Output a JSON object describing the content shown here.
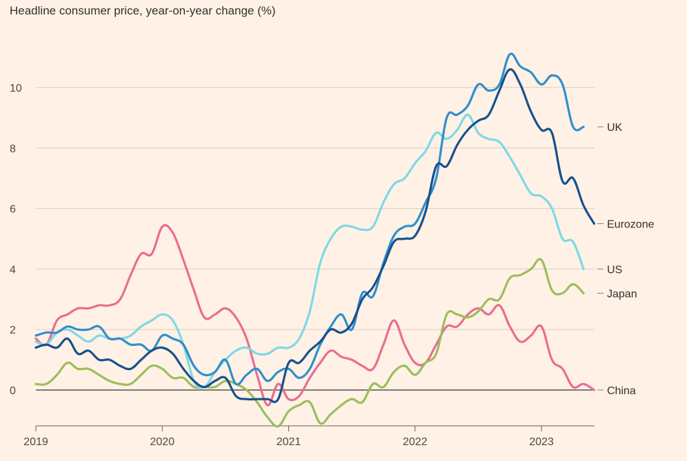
{
  "chart_data": {
    "type": "line",
    "title": "Headline consumer price, year-on-year change (%)",
    "xlabel": "",
    "ylabel": "",
    "x_ticks": [
      "2019",
      "2020",
      "2021",
      "2022",
      "2023"
    ],
    "y_ticks": [
      0,
      2,
      4,
      6,
      8,
      10
    ],
    "xlim": [
      2019.0,
      2023.42
    ],
    "ylim": [
      -1.2,
      11.5
    ],
    "grid": true,
    "legend": "direct labels at right end of lines",
    "series": [
      {
        "name": "China",
        "color": "#E86D91",
        "points": [
          [
            2019.0,
            1.7
          ],
          [
            2019.083,
            1.5
          ],
          [
            2019.167,
            2.3
          ],
          [
            2019.25,
            2.5
          ],
          [
            2019.333,
            2.7
          ],
          [
            2019.417,
            2.7
          ],
          [
            2019.5,
            2.8
          ],
          [
            2019.583,
            2.8
          ],
          [
            2019.667,
            3.0
          ],
          [
            2019.75,
            3.8
          ],
          [
            2019.833,
            4.5
          ],
          [
            2019.917,
            4.5
          ],
          [
            2020.0,
            5.4
          ],
          [
            2020.083,
            5.2
          ],
          [
            2020.167,
            4.3
          ],
          [
            2020.25,
            3.3
          ],
          [
            2020.333,
            2.4
          ],
          [
            2020.417,
            2.5
          ],
          [
            2020.5,
            2.7
          ],
          [
            2020.583,
            2.4
          ],
          [
            2020.667,
            1.7
          ],
          [
            2020.75,
            0.5
          ],
          [
            2020.833,
            -0.5
          ],
          [
            2020.917,
            0.2
          ],
          [
            2021.0,
            -0.3
          ],
          [
            2021.083,
            -0.2
          ],
          [
            2021.167,
            0.4
          ],
          [
            2021.25,
            0.9
          ],
          [
            2021.333,
            1.3
          ],
          [
            2021.417,
            1.1
          ],
          [
            2021.5,
            1.0
          ],
          [
            2021.583,
            0.8
          ],
          [
            2021.667,
            0.7
          ],
          [
            2021.75,
            1.5
          ],
          [
            2021.833,
            2.3
          ],
          [
            2021.917,
            1.5
          ],
          [
            2022.0,
            0.9
          ],
          [
            2022.083,
            0.9
          ],
          [
            2022.167,
            1.5
          ],
          [
            2022.25,
            2.1
          ],
          [
            2022.333,
            2.1
          ],
          [
            2022.417,
            2.5
          ],
          [
            2022.5,
            2.7
          ],
          [
            2022.583,
            2.5
          ],
          [
            2022.667,
            2.8
          ],
          [
            2022.75,
            2.1
          ],
          [
            2022.833,
            1.6
          ],
          [
            2022.917,
            1.8
          ],
          [
            2023.0,
            2.1
          ],
          [
            2023.083,
            1.0
          ],
          [
            2023.167,
            0.7
          ],
          [
            2023.25,
            0.1
          ],
          [
            2023.333,
            0.2
          ],
          [
            2023.417,
            0.0
          ]
        ]
      },
      {
        "name": "Japan",
        "color": "#9BBE5A",
        "points": [
          [
            2019.0,
            0.2
          ],
          [
            2019.083,
            0.2
          ],
          [
            2019.167,
            0.5
          ],
          [
            2019.25,
            0.9
          ],
          [
            2019.333,
            0.7
          ],
          [
            2019.417,
            0.7
          ],
          [
            2019.5,
            0.5
          ],
          [
            2019.583,
            0.3
          ],
          [
            2019.667,
            0.2
          ],
          [
            2019.75,
            0.2
          ],
          [
            2019.833,
            0.5
          ],
          [
            2019.917,
            0.8
          ],
          [
            2020.0,
            0.7
          ],
          [
            2020.083,
            0.4
          ],
          [
            2020.167,
            0.4
          ],
          [
            2020.25,
            0.1
          ],
          [
            2020.333,
            0.1
          ],
          [
            2020.417,
            0.1
          ],
          [
            2020.5,
            0.3
          ],
          [
            2020.583,
            0.2
          ],
          [
            2020.667,
            0.0
          ],
          [
            2020.75,
            -0.4
          ],
          [
            2020.833,
            -0.9
          ],
          [
            2020.917,
            -1.2
          ],
          [
            2021.0,
            -0.7
          ],
          [
            2021.083,
            -0.5
          ],
          [
            2021.167,
            -0.4
          ],
          [
            2021.25,
            -1.1
          ],
          [
            2021.333,
            -0.8
          ],
          [
            2021.417,
            -0.5
          ],
          [
            2021.5,
            -0.3
          ],
          [
            2021.583,
            -0.4
          ],
          [
            2021.667,
            0.2
          ],
          [
            2021.75,
            0.1
          ],
          [
            2021.833,
            0.6
          ],
          [
            2021.917,
            0.8
          ],
          [
            2022.0,
            0.5
          ],
          [
            2022.083,
            0.9
          ],
          [
            2022.167,
            1.2
          ],
          [
            2022.25,
            2.5
          ],
          [
            2022.333,
            2.5
          ],
          [
            2022.417,
            2.4
          ],
          [
            2022.5,
            2.6
          ],
          [
            2022.583,
            3.0
          ],
          [
            2022.667,
            3.0
          ],
          [
            2022.75,
            3.7
          ],
          [
            2022.833,
            3.8
          ],
          [
            2022.917,
            4.0
          ],
          [
            2023.0,
            4.3
          ],
          [
            2023.083,
            3.3
          ],
          [
            2023.167,
            3.2
          ],
          [
            2023.25,
            3.5
          ],
          [
            2023.333,
            3.2
          ]
        ]
      },
      {
        "name": "US",
        "color": "#7DD8E8",
        "points": [
          [
            2019.0,
            1.6
          ],
          [
            2019.083,
            1.5
          ],
          [
            2019.167,
            1.9
          ],
          [
            2019.25,
            2.0
          ],
          [
            2019.333,
            1.8
          ],
          [
            2019.417,
            1.6
          ],
          [
            2019.5,
            1.8
          ],
          [
            2019.583,
            1.7
          ],
          [
            2019.667,
            1.7
          ],
          [
            2019.75,
            1.8
          ],
          [
            2019.833,
            2.1
          ],
          [
            2019.917,
            2.3
          ],
          [
            2020.0,
            2.5
          ],
          [
            2020.083,
            2.3
          ],
          [
            2020.167,
            1.5
          ],
          [
            2020.25,
            0.3
          ],
          [
            2020.333,
            0.1
          ],
          [
            2020.417,
            0.6
          ],
          [
            2020.5,
            1.0
          ],
          [
            2020.583,
            1.3
          ],
          [
            2020.667,
            1.4
          ],
          [
            2020.75,
            1.2
          ],
          [
            2020.833,
            1.2
          ],
          [
            2020.917,
            1.4
          ],
          [
            2021.0,
            1.4
          ],
          [
            2021.083,
            1.7
          ],
          [
            2021.167,
            2.6
          ],
          [
            2021.25,
            4.2
          ],
          [
            2021.333,
            5.0
          ],
          [
            2021.417,
            5.4
          ],
          [
            2021.5,
            5.4
          ],
          [
            2021.583,
            5.3
          ],
          [
            2021.667,
            5.4
          ],
          [
            2021.75,
            6.2
          ],
          [
            2021.833,
            6.8
          ],
          [
            2021.917,
            7.0
          ],
          [
            2022.0,
            7.5
          ],
          [
            2022.083,
            7.9
          ],
          [
            2022.167,
            8.5
          ],
          [
            2022.25,
            8.3
          ],
          [
            2022.333,
            8.6
          ],
          [
            2022.417,
            9.1
          ],
          [
            2022.5,
            8.5
          ],
          [
            2022.583,
            8.3
          ],
          [
            2022.667,
            8.2
          ],
          [
            2022.75,
            7.7
          ],
          [
            2022.833,
            7.1
          ],
          [
            2022.917,
            6.5
          ],
          [
            2023.0,
            6.4
          ],
          [
            2023.083,
            6.0
          ],
          [
            2023.167,
            5.0
          ],
          [
            2023.25,
            4.9
          ],
          [
            2023.333,
            4.0
          ]
        ]
      },
      {
        "name": "UK",
        "color": "#2E8FCC",
        "points": [
          [
            2019.0,
            1.8
          ],
          [
            2019.083,
            1.9
          ],
          [
            2019.167,
            1.9
          ],
          [
            2019.25,
            2.1
          ],
          [
            2019.333,
            2.0
          ],
          [
            2019.417,
            2.0
          ],
          [
            2019.5,
            2.1
          ],
          [
            2019.583,
            1.7
          ],
          [
            2019.667,
            1.7
          ],
          [
            2019.75,
            1.5
          ],
          [
            2019.833,
            1.5
          ],
          [
            2019.917,
            1.3
          ],
          [
            2020.0,
            1.8
          ],
          [
            2020.083,
            1.7
          ],
          [
            2020.167,
            1.5
          ],
          [
            2020.25,
            0.8
          ],
          [
            2020.333,
            0.5
          ],
          [
            2020.417,
            0.6
          ],
          [
            2020.5,
            1.0
          ],
          [
            2020.583,
            0.2
          ],
          [
            2020.667,
            0.5
          ],
          [
            2020.75,
            0.7
          ],
          [
            2020.833,
            0.3
          ],
          [
            2020.917,
            0.6
          ],
          [
            2021.0,
            0.7
          ],
          [
            2021.083,
            0.4
          ],
          [
            2021.167,
            0.7
          ],
          [
            2021.25,
            1.5
          ],
          [
            2021.333,
            2.1
          ],
          [
            2021.417,
            2.5
          ],
          [
            2021.5,
            2.0
          ],
          [
            2021.583,
            3.2
          ],
          [
            2021.667,
            3.1
          ],
          [
            2021.75,
            4.2
          ],
          [
            2021.833,
            5.1
          ],
          [
            2021.917,
            5.4
          ],
          [
            2022.0,
            5.5
          ],
          [
            2022.083,
            6.2
          ],
          [
            2022.167,
            7.0
          ],
          [
            2022.25,
            9.0
          ],
          [
            2022.333,
            9.1
          ],
          [
            2022.417,
            9.4
          ],
          [
            2022.5,
            10.1
          ],
          [
            2022.583,
            9.9
          ],
          [
            2022.667,
            10.1
          ],
          [
            2022.75,
            11.1
          ],
          [
            2022.833,
            10.7
          ],
          [
            2022.917,
            10.5
          ],
          [
            2023.0,
            10.1
          ],
          [
            2023.083,
            10.4
          ],
          [
            2023.167,
            10.1
          ],
          [
            2023.25,
            8.7
          ],
          [
            2023.333,
            8.7
          ]
        ]
      },
      {
        "name": "Eurozone",
        "color": "#17508D",
        "points": [
          [
            2019.0,
            1.4
          ],
          [
            2019.083,
            1.5
          ],
          [
            2019.167,
            1.4
          ],
          [
            2019.25,
            1.7
          ],
          [
            2019.333,
            1.2
          ],
          [
            2019.417,
            1.3
          ],
          [
            2019.5,
            1.0
          ],
          [
            2019.583,
            1.0
          ],
          [
            2019.667,
            0.8
          ],
          [
            2019.75,
            0.7
          ],
          [
            2019.833,
            1.0
          ],
          [
            2019.917,
            1.3
          ],
          [
            2020.0,
            1.4
          ],
          [
            2020.083,
            1.2
          ],
          [
            2020.167,
            0.7
          ],
          [
            2020.25,
            0.3
          ],
          [
            2020.333,
            0.1
          ],
          [
            2020.417,
            0.3
          ],
          [
            2020.5,
            0.4
          ],
          [
            2020.583,
            -0.2
          ],
          [
            2020.667,
            -0.3
          ],
          [
            2020.75,
            -0.3
          ],
          [
            2020.833,
            -0.3
          ],
          [
            2020.917,
            -0.3
          ],
          [
            2021.0,
            0.9
          ],
          [
            2021.083,
            0.9
          ],
          [
            2021.167,
            1.3
          ],
          [
            2021.25,
            1.6
          ],
          [
            2021.333,
            2.0
          ],
          [
            2021.417,
            1.9
          ],
          [
            2021.5,
            2.2
          ],
          [
            2021.583,
            3.0
          ],
          [
            2021.667,
            3.4
          ],
          [
            2021.75,
            4.1
          ],
          [
            2021.833,
            4.9
          ],
          [
            2021.917,
            5.0
          ],
          [
            2022.0,
            5.1
          ],
          [
            2022.083,
            5.9
          ],
          [
            2022.167,
            7.4
          ],
          [
            2022.25,
            7.4
          ],
          [
            2022.333,
            8.1
          ],
          [
            2022.417,
            8.6
          ],
          [
            2022.5,
            8.9
          ],
          [
            2022.583,
            9.1
          ],
          [
            2022.667,
            9.9
          ],
          [
            2022.75,
            10.6
          ],
          [
            2022.833,
            10.1
          ],
          [
            2022.917,
            9.2
          ],
          [
            2023.0,
            8.6
          ],
          [
            2023.083,
            8.5
          ],
          [
            2023.167,
            6.9
          ],
          [
            2023.25,
            7.0
          ],
          [
            2023.333,
            6.1
          ],
          [
            2023.417,
            5.5
          ]
        ]
      }
    ]
  },
  "end_labels": [
    {
      "name": "UK",
      "y": 8.7,
      "color": "#33302E"
    },
    {
      "name": "Eurozone",
      "y": 5.5,
      "color": "#33302E"
    },
    {
      "name": "US",
      "y": 4.0,
      "color": "#33302E"
    },
    {
      "name": "Japan",
      "y": 3.2,
      "color": "#33302E"
    },
    {
      "name": "China",
      "y": 0.0,
      "color": "#33302E"
    }
  ],
  "colors": {
    "background": "#FFF1E5",
    "gridline": "#D9CCC1",
    "zero_line": "#33302E",
    "text": "#33302E"
  }
}
